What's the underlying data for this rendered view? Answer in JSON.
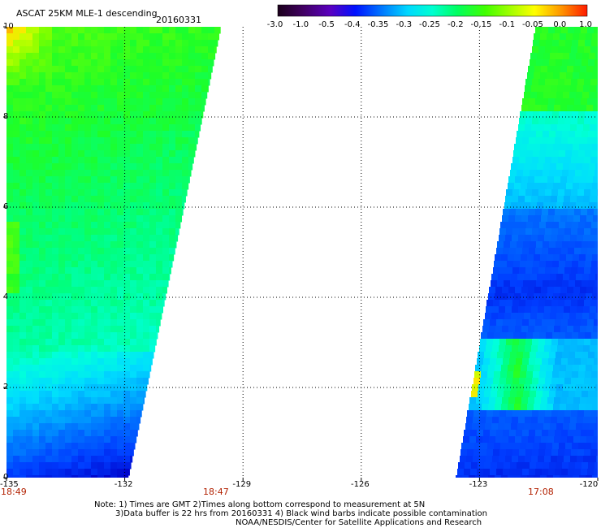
{
  "header": {
    "product": "ASCAT 25KM MLE-1 descending",
    "date": "20160331"
  },
  "colorbar": {
    "labels": [
      "-3.0",
      "-1.0",
      "-0.5",
      "-0.4",
      "-0.35",
      "-0.3",
      "-0.25",
      "-0.2",
      "-0.15",
      "-0.1",
      "-0.05",
      "0.0",
      "1.0"
    ]
  },
  "axes": {
    "y_labels": [
      "10",
      "8",
      "6",
      "4",
      "2",
      "0"
    ],
    "x_labels": [
      "-135",
      "-132",
      "-129",
      "-126",
      "-123",
      "-120"
    ]
  },
  "times": {
    "left_edge": "18:49",
    "left_swath": "18:47",
    "right_swath": "17:08"
  },
  "notes": [
    "Note: 1) Times are GMT 2)Times along bottom correspond to measurement at 5N",
    "3)Data buffer is 22 hrs from 20160331 4) Black wind barbs indicate possible contamination",
    "NOAA/NESDIS/Center for Satellite Applications and Research"
  ],
  "colors": {
    "time_label": "#b22000",
    "gridline": "#000000"
  },
  "chart_data": {
    "type": "heatmap",
    "title": "ASCAT 25KM MLE-1 descending 20160331",
    "xlim": [
      -135,
      -120
    ],
    "ylim": [
      0,
      10
    ],
    "x_ticks": [
      -135,
      -132,
      -129,
      -126,
      -123,
      -120
    ],
    "y_ticks": [
      0,
      2,
      4,
      6,
      8,
      10
    ],
    "colorbar_values": [
      -3.0,
      -1.0,
      -0.5,
      -0.4,
      -0.35,
      -0.3,
      -0.25,
      -0.2,
      -0.15,
      -0.1,
      -0.05,
      0.0,
      1.0
    ],
    "grid": true,
    "colorbar_placement": "top-right"
  }
}
